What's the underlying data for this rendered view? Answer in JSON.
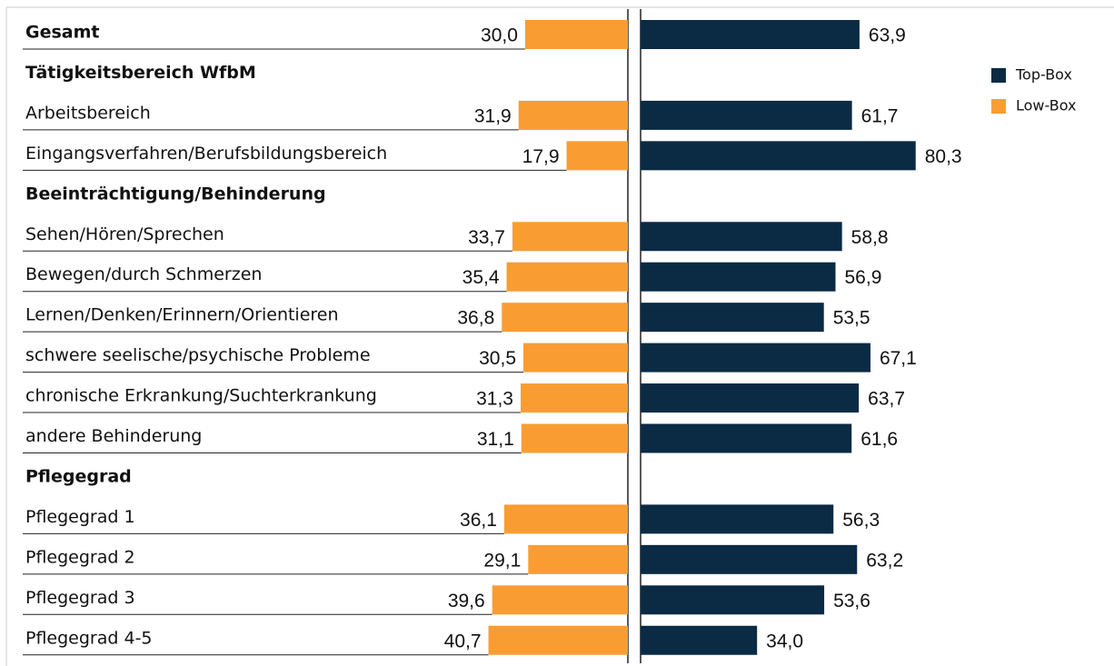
{
  "chart_data": {
    "type": "diverging-bar",
    "categories": [
      "Gesamt",
      "Tätigkeitsbereich WfbM",
      "Arbeitsbereich",
      "Eingangsverfahren/Berufsbildungsbereich",
      "Beeinträchtigung/Behinderung",
      "Sehen/Hören/Sprechen",
      "Bewegen/durch Schmerzen",
      "Lernen/Denken/Erinnern/Orientieren",
      "schwere seelische/psychische Probleme",
      "chronische Erkrankung/Suchterkrankung",
      "andere Behinderung",
      "Pflegegrad",
      "Pflegegrad 1",
      "Pflegegrad 2",
      "Pflegegrad 3",
      "Pflegegrad 4-5"
    ],
    "series": [
      {
        "name": "Top-Box",
        "color": "#0b2a44",
        "side": "right",
        "values": [
          63.9,
          null,
          61.7,
          80.3,
          null,
          58.8,
          56.9,
          53.5,
          67.1,
          63.7,
          61.6,
          null,
          56.3,
          63.2,
          53.6,
          34.0
        ],
        "value_labels": [
          "63,9",
          null,
          "61,7",
          "80,3",
          null,
          "58,8",
          "56,9",
          "53,5",
          "67,1",
          "63,7",
          "61,6",
          null,
          "56,3",
          "63,2",
          "53,6",
          "34,0"
        ]
      },
      {
        "name": "Low-Box",
        "color": "#f99d33",
        "side": "left",
        "values": [
          30.0,
          null,
          31.9,
          17.9,
          null,
          33.7,
          35.4,
          36.8,
          30.5,
          31.3,
          31.1,
          null,
          36.1,
          29.1,
          39.6,
          40.7
        ],
        "value_labels": [
          "30,0",
          null,
          "31,9",
          "17,9",
          null,
          "33,7",
          "35,4",
          "36,8",
          "30,5",
          "31,3",
          "31,1",
          null,
          "36,1",
          "29,1",
          "39,6",
          "40,7"
        ]
      }
    ],
    "legend": "top-right"
  }
}
